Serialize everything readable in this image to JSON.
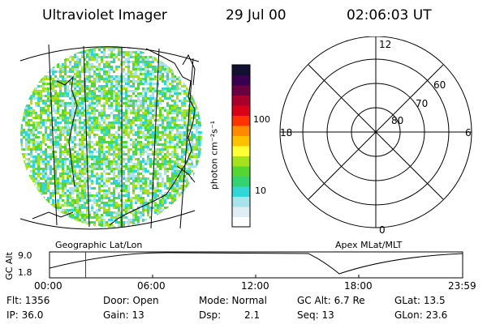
{
  "header": {
    "instrument": "Ultraviolet Imager",
    "date": "29 Jul 00",
    "time": "02:06:03 UT"
  },
  "colorbar": {
    "unit_label": "photon cm⁻²s⁻¹",
    "tick_100": "100",
    "tick_10": "10",
    "colors": [
      "#ffffff",
      "#dfeef5",
      "#a6e3ea",
      "#33d6d6",
      "#33d36f",
      "#55d633",
      "#a5e21c",
      "#ffff33",
      "#ffc000",
      "#ff8a00",
      "#ff3300",
      "#d80018",
      "#a8002a",
      "#6a0040",
      "#3a0050",
      "#101030"
    ]
  },
  "geographic_panel": {
    "label": "Geographic Lat/Lon",
    "pixel_colors": [
      "#33d6d6",
      "#55d633",
      "#a5e21c",
      "#a6e3ea"
    ]
  },
  "polar_panel": {
    "label": "Apex MLat/MLT",
    "mlt_labels": {
      "top": "12",
      "bottom": "0",
      "left": "18",
      "right": "6"
    },
    "lat_labels": [
      "60",
      "70",
      "80"
    ]
  },
  "altitude_plot": {
    "ylabel": "GC Alt",
    "yticks": [
      "9.0",
      "1.8"
    ],
    "xticks": [
      "00:00",
      "06:00",
      "12:00",
      "18:00",
      "23:59"
    ],
    "current_time_marker_hours": 2.1
  },
  "info": {
    "flt": "Flt: 1356",
    "ip": "IP: 36.0",
    "door": "Door: Open",
    "gain": "Gain: 13",
    "mode": "Mode: Normal",
    "dsp_label": "Dsp:",
    "dsp_value": "2.1",
    "gcalt": "GC Alt: 6.7 Re",
    "seq": "Seq: 13",
    "glat": "GLat:  13.5",
    "glon": "GLon:  23.6"
  }
}
